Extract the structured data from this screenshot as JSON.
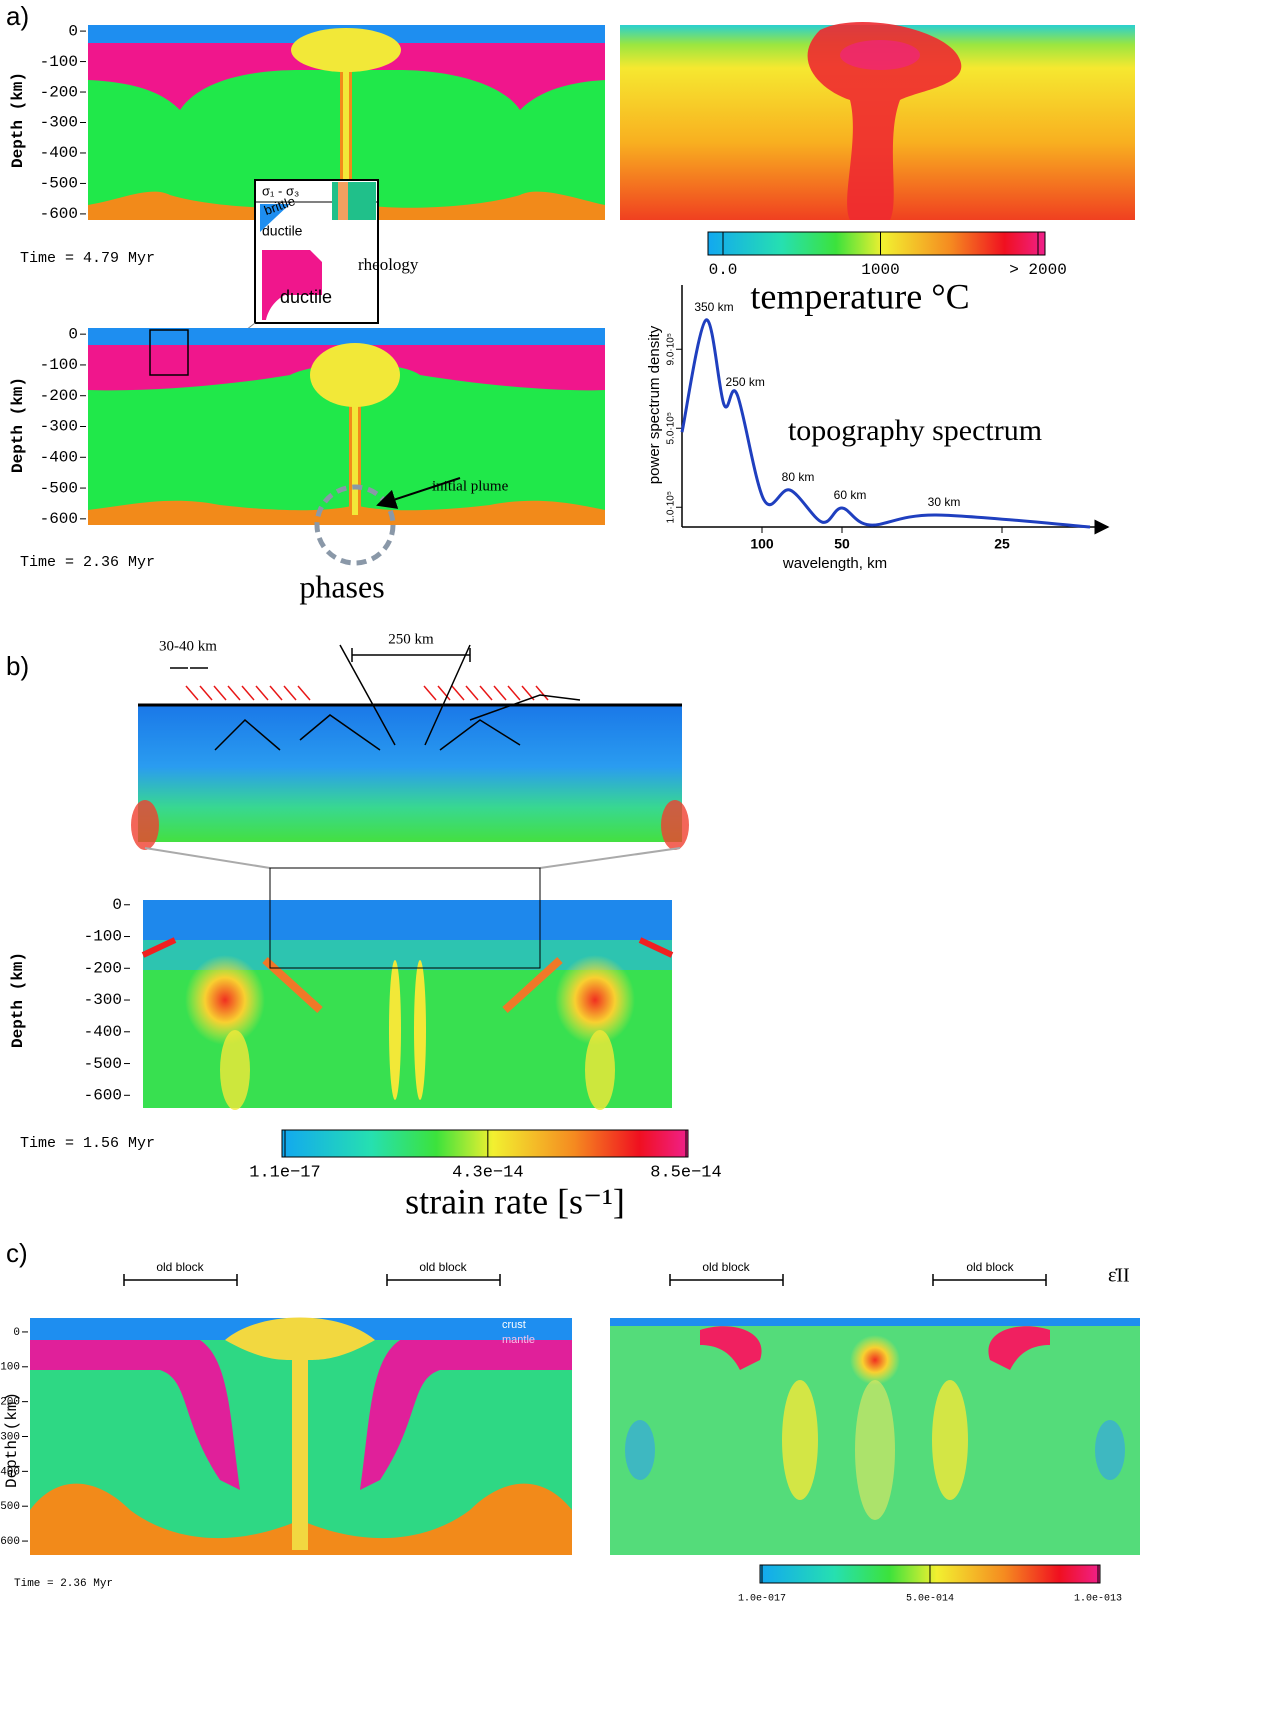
{
  "panel_a": {
    "label": "a)",
    "phases_top": {
      "y_label": "Depth (km)",
      "ylim": [
        20,
        -620
      ],
      "yticks": [
        0,
        -100,
        -200,
        -300,
        -400,
        -500,
        -600
      ],
      "time": "Time =  4.79 Myr"
    },
    "rheology_inset": {
      "stress": "σ₁ - σ₃",
      "brittle": "brittle",
      "ductile_upper": "ductile",
      "ductile_lower": "ductile",
      "label": "rheology"
    },
    "temperature": {
      "title": "temperature °C",
      "colorbar": {
        "lim": [
          0,
          2000
        ],
        "ticks": [
          {
            "value": 0,
            "label": "0.0"
          },
          1000,
          {
            "value": 2000,
            "label": "> 2000"
          }
        ]
      }
    },
    "phases_bottom": {
      "y_label": "Depth (km)",
      "ylim": [
        20,
        -620
      ],
      "yticks": [
        0,
        -100,
        -200,
        -300,
        -400,
        -500,
        -600
      ],
      "time": "Time =  2.36 Myr",
      "annotation": "initial plume",
      "caption": "phases"
    },
    "spectrum": {
      "type": "line",
      "title": "topography spectrum",
      "y_label": "power spectrum density",
      "x_label": "wavelength, km",
      "x": [
        0,
        0.003,
        0.00525,
        0.0069,
        0.01025,
        0.0135,
        0.0175,
        0.02,
        0.0235,
        0.03175,
        0.051
      ],
      "values": [
        480000,
        1048000,
        620000,
        670000,
        137000,
        187000,
        25000,
        96000,
        10000,
        61000,
        0
      ],
      "color": "#1f3fbf",
      "xlim": [
        0,
        0.052
      ],
      "ylim": [
        0,
        1200000
      ],
      "xticks": [
        {
          "value": 0.01,
          "label": "100"
        },
        {
          "value": 0.02,
          "label": "50"
        },
        {
          "value": 0.04,
          "label": "25"
        }
      ],
      "yticks": [
        {
          "value": 100000,
          "label": "1.0·10⁵"
        },
        {
          "value": 500000,
          "label": "5.0·10⁵"
        },
        {
          "value": 900000,
          "label": "9.0·10⁵"
        }
      ],
      "peak_labels": [
        "350 km",
        "250 km",
        "80 km",
        "60 km",
        "30 km"
      ]
    }
  },
  "panel_b": {
    "label": "b)",
    "spacing": "30-40 km",
    "width": "250 km",
    "y_label": "Depth (km)",
    "ylim": [
      15,
      -640
    ],
    "yticks": [
      0,
      -100,
      -200,
      -300,
      -400,
      -500,
      -600
    ],
    "time": "Time =  1.56 Myr",
    "colorbar": {
      "title": "strain rate [s⁻¹]",
      "lim": [
        1.1e-17,
        8.5e-14
      ],
      "ticks": [
        {
          "value": 1.1e-17,
          "label": "1.1e−17"
        },
        {
          "value": 4.3e-14,
          "label": "4.3e−14"
        },
        {
          "value": 8.5e-14,
          "label": "8.5e−14"
        }
      ]
    }
  },
  "panel_c": {
    "label": "c)",
    "blocks": [
      "old block",
      "old block",
      "old block",
      "old block"
    ],
    "crust": "crust",
    "mantle": "mantle",
    "y_label": "Depth (km)",
    "ylim": [
      40,
      -640
    ],
    "yticks": [
      0,
      -100,
      -200,
      -300,
      -400,
      -500,
      -600
    ],
    "time": "Time =  2.36 Myr",
    "symbol": "ε̇II",
    "colorbar": {
      "lim": [
        1e-17,
        1e-13
      ],
      "ticks": [
        {
          "value": 1e-17,
          "label": "1.0e-017"
        },
        {
          "value": 5e-14,
          "label": "5.0e-014"
        },
        {
          "value": 1e-13,
          "label": "1.0e-013"
        }
      ]
    }
  }
}
